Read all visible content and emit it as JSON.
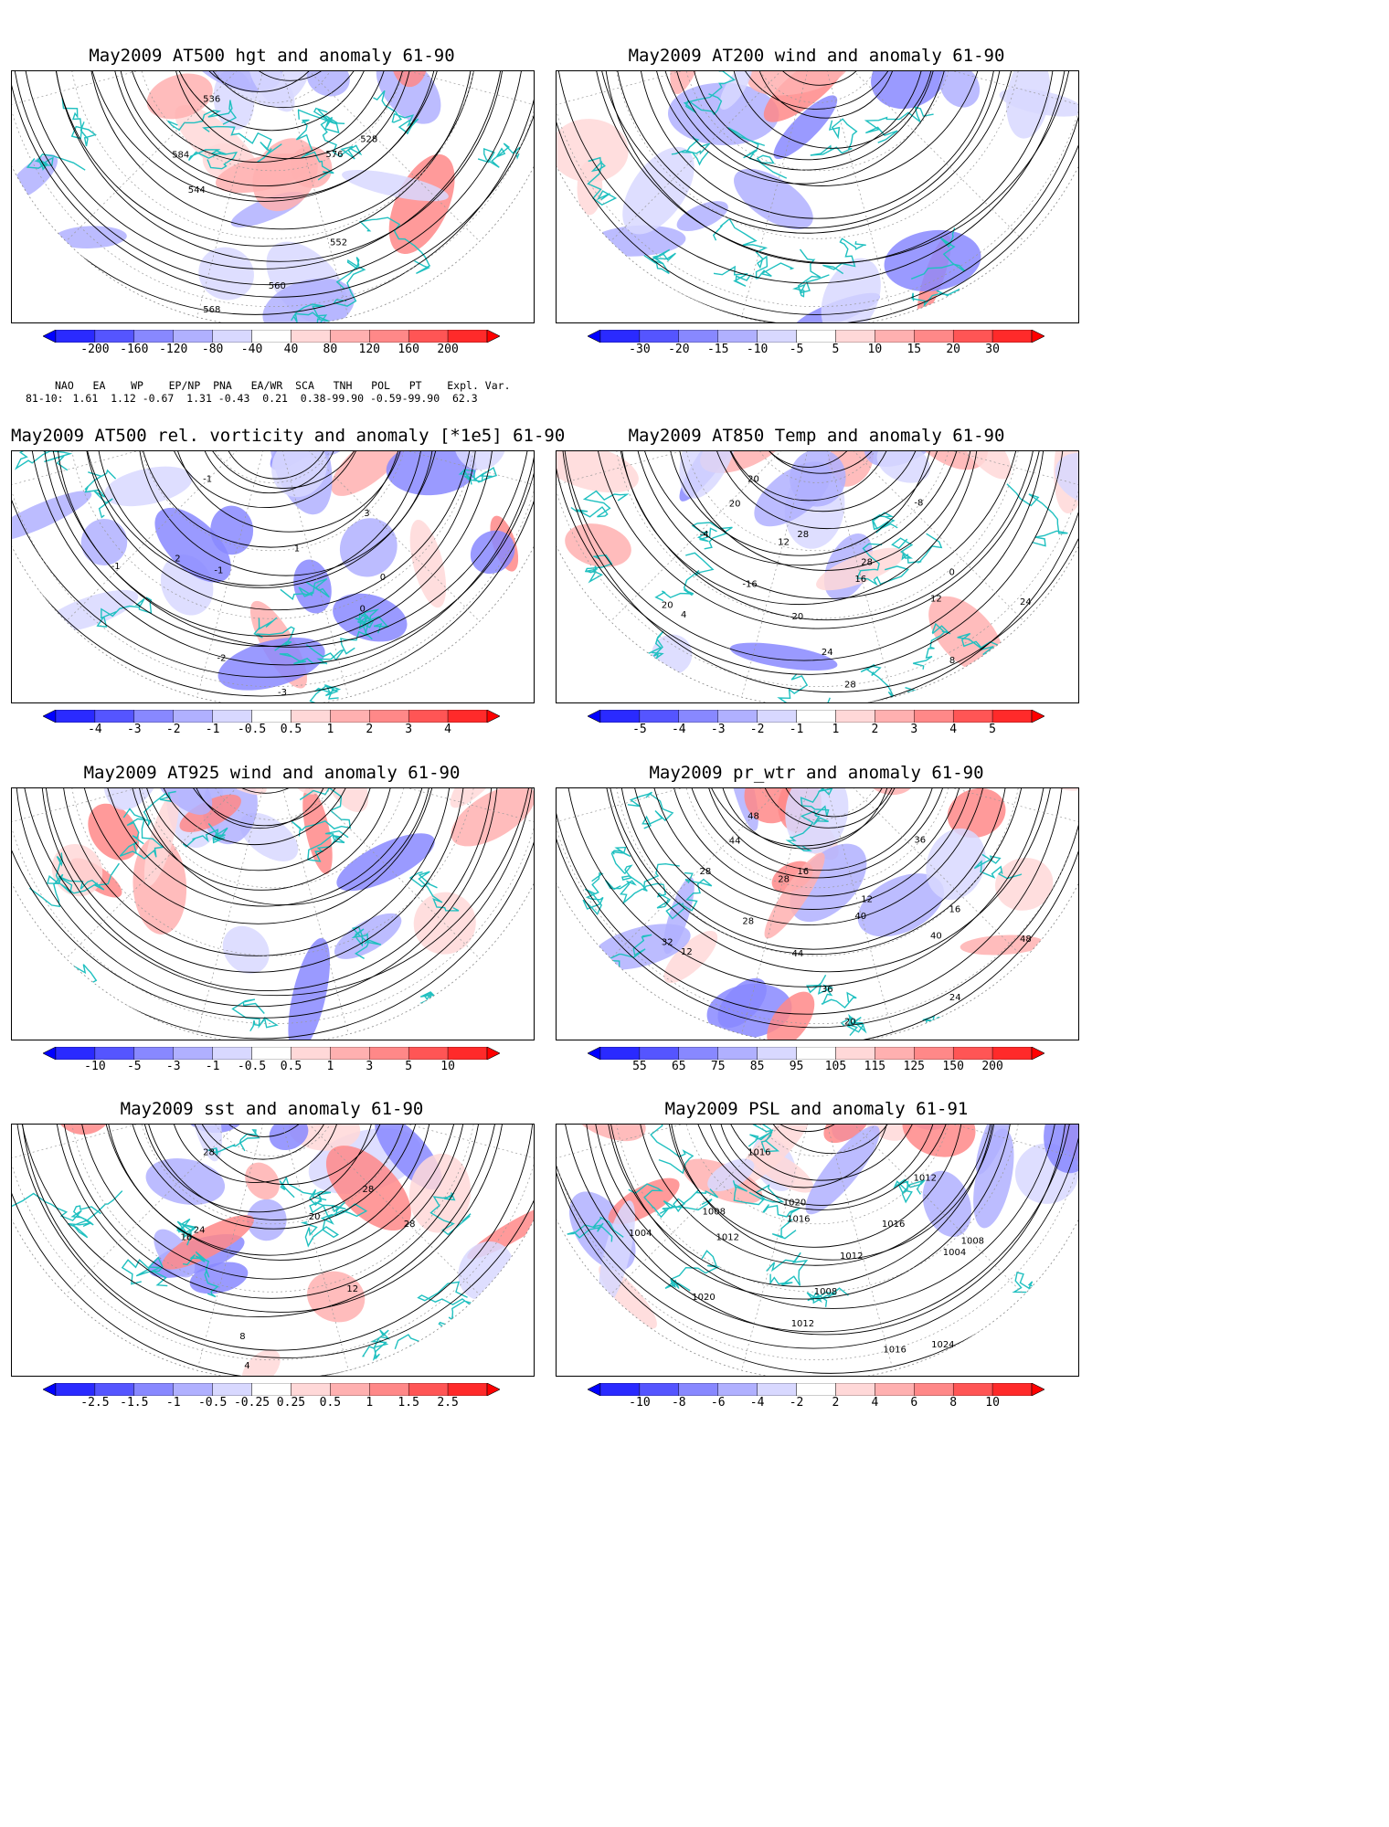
{
  "panels": [
    {
      "id": "p1",
      "title": "May2009 AT500 hgt and anomaly 61-90",
      "contour_labels": [
        "536",
        "528",
        "544",
        "552",
        "560",
        "568",
        "576",
        "584"
      ],
      "colorbar": [
        "-200",
        "-160",
        "-120",
        "-80",
        "-40",
        "40",
        "80",
        "120",
        "160",
        "200"
      ]
    },
    {
      "id": "p2",
      "title": "May2009 AT200 wind and anomaly 61-90",
      "contour_labels": [],
      "colorbar": [
        "-30",
        "-20",
        "-15",
        "-10",
        "-5",
        "5",
        "10",
        "15",
        "20",
        "30"
      ]
    },
    {
      "id": "p3",
      "title": "May2009 AT500 rel. vorticity and anomaly [*1e5] 61-90",
      "contour_labels": [
        "-1",
        "3",
        "2",
        "0",
        "-2",
        "-3",
        "1",
        "-1",
        "0",
        "-1"
      ],
      "colorbar": [
        "-4",
        "-3",
        "-2",
        "-1",
        "-0.5",
        "0.5",
        "1",
        "2",
        "3",
        "4"
      ]
    },
    {
      "id": "p4",
      "title": "May2009 AT850 Temp and anomaly 61-90",
      "contour_labels": [
        "20",
        "-8",
        "-4",
        "0",
        "4",
        "8",
        "12",
        "16",
        "20",
        "24",
        "28",
        "28",
        "28",
        "-16",
        "12",
        "20",
        "24",
        "20"
      ],
      "colorbar": [
        "-5",
        "-4",
        "-3",
        "-2",
        "-1",
        "1",
        "2",
        "3",
        "4",
        "5"
      ]
    },
    {
      "id": "p5",
      "title": "May2009 AT925 wind and anomaly 61-90",
      "contour_labels": [],
      "colorbar": [
        "-10",
        "-5",
        "-3",
        "-1",
        "-0.5",
        "0.5",
        "1",
        "3",
        "5",
        "10"
      ]
    },
    {
      "id": "p6",
      "title": "May2009 pr_wtr and anomaly 61-90",
      "contour_labels": [
        "48",
        "36",
        "28",
        "16",
        "12",
        "24",
        "28",
        "40",
        "44",
        "36",
        "20",
        "16",
        "12",
        "28",
        "40",
        "32",
        "48",
        "44"
      ],
      "colorbar": [
        "55",
        "65",
        "75",
        "85",
        "95",
        "105",
        "115",
        "125",
        "150",
        "200"
      ]
    },
    {
      "id": "p7",
      "title": "May2009 sst and anomaly 61-90",
      "contour_labels": [
        "28",
        "28",
        "16",
        "12",
        "8",
        "4",
        "20",
        "24",
        "28"
      ],
      "colorbar": [
        "-2.5",
        "-1.5",
        "-1",
        "-0.5",
        "-0.25",
        "0.25",
        "0.5",
        "1",
        "1.5",
        "2.5"
      ]
    },
    {
      "id": "p8",
      "title": "May2009 PSL and anomaly 61-91",
      "contour_labels": [
        "1016",
        "1012",
        "1008",
        "1004",
        "1020",
        "1024",
        "1016",
        "1012",
        "1008",
        "1012",
        "1016",
        "1020",
        "1016",
        "1012",
        "1008",
        "1004"
      ],
      "colorbar": [
        "-10",
        "-8",
        "-6",
        "-4",
        "-2",
        "2",
        "4",
        "6",
        "8",
        "10"
      ]
    }
  ],
  "teleconnections": {
    "header": "NAO   EA    WP    EP/NP  PNA   EA/WR  SCA   TNH   POL   PT    Expl. Var.",
    "row_label": "81-10:",
    "values": "1.61  1.12 -0.67  1.31 -0.43  0.21  0.38-99.90 -0.59-99.90  62.3"
  },
  "colors": {
    "land_coast": "#20c0c0",
    "neg_scale": [
      "#2a2aff",
      "#5555ff",
      "#8888ff",
      "#b0b0ff",
      "#d8d8ff"
    ],
    "pos_scale": [
      "#ffd8d8",
      "#ffb0b0",
      "#ff8888",
      "#ff5555",
      "#ff2a2a"
    ]
  }
}
